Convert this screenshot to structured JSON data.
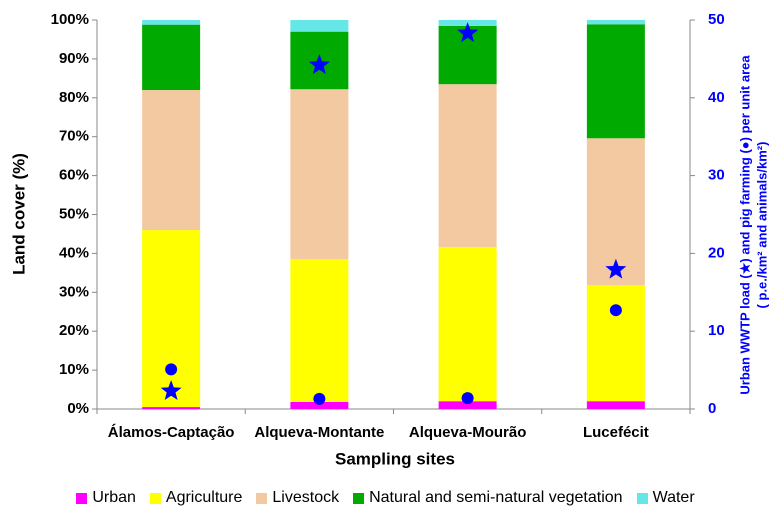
{
  "chart_data": {
    "type": "stacked-bar",
    "xlabel": "Sampling sites",
    "ylabel": "Land cover  (%)",
    "y2label": [
      "Urban WWTP load (★) and pig farming (●) per unit area",
      "( p.e./km² and animals/km²)"
    ],
    "categories": [
      "Álamos-Captação",
      "Alqueva-Montante",
      "Alqueva-Mourão",
      "Lucefécit"
    ],
    "series": [
      {
        "name": "Urban",
        "color": "#ff00ff",
        "values": [
          0.5,
          1.8,
          2,
          2
        ]
      },
      {
        "name": "Agriculture",
        "color": "#ffff00",
        "values": [
          45.5,
          36.7,
          39.6,
          29.8
        ]
      },
      {
        "name": "Livestock",
        "color": "#f2c9a1",
        "values": [
          36,
          43.7,
          41.9,
          37.8
        ]
      },
      {
        "name": "Natural and semi-natural vegetation",
        "color": "#00aa00",
        "values": [
          16.8,
          14.8,
          15,
          29.3
        ]
      },
      {
        "name": "Water",
        "color": "#66e6e6",
        "values": [
          1.2,
          3,
          1.5,
          1.1
        ]
      }
    ],
    "markers": [
      {
        "marker": "star",
        "axis": "y2",
        "color": "#0000ff",
        "values": [
          2.3,
          44.2,
          48.3,
          17.9
        ]
      },
      {
        "marker": "circle",
        "axis": "y2",
        "color": "#0000ff",
        "values": [
          5.1,
          1.3,
          1.4,
          12.7
        ]
      }
    ],
    "ylim": [
      0,
      100
    ],
    "yticks": [
      {
        "value": 0,
        "label": "0%"
      },
      {
        "value": 10,
        "label": "10%"
      },
      {
        "value": 20,
        "label": "20%"
      },
      {
        "value": 30,
        "label": "30%"
      },
      {
        "value": 40,
        "label": "40%"
      },
      {
        "value": 50,
        "label": "50%"
      },
      {
        "value": 60,
        "label": "60%"
      },
      {
        "value": 70,
        "label": "70%"
      },
      {
        "value": 80,
        "label": "80%"
      },
      {
        "value": 90,
        "label": "90%"
      },
      {
        "value": 100,
        "label": "100%"
      }
    ],
    "y2lim": [
      0,
      50
    ],
    "y2ticks": [
      0,
      10,
      20,
      30,
      40,
      50
    ],
    "legend": "bottom"
  }
}
